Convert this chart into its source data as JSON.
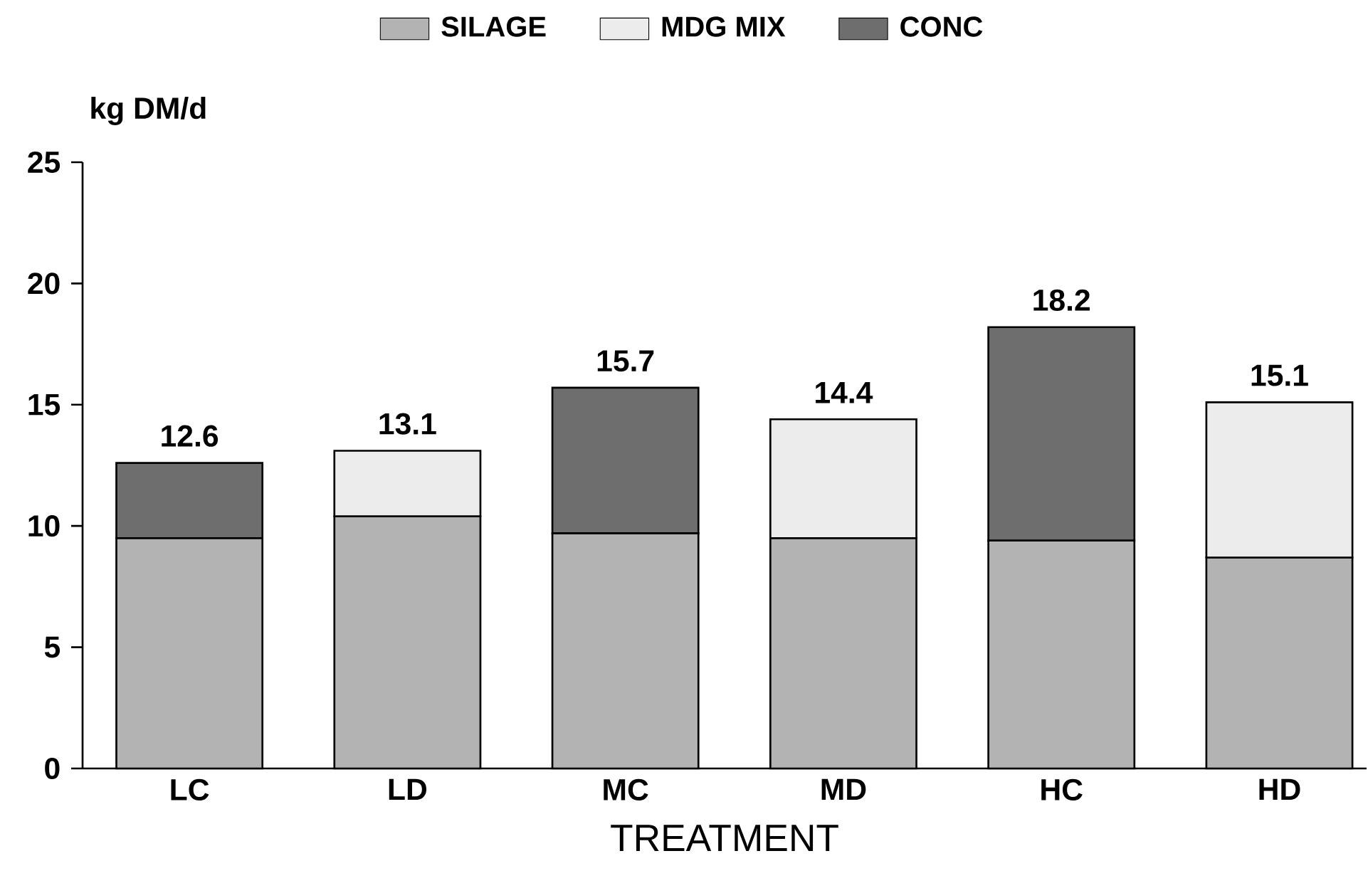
{
  "chart_data": {
    "type": "bar",
    "stacked": true,
    "xlabel": "TREATMENT",
    "ylabel": "kg DM/d",
    "categories": [
      "LC",
      "LD",
      "MC",
      "MD",
      "HC",
      "HD"
    ],
    "series": [
      {
        "name": "SILAGE",
        "color": "#b3b3b3",
        "values": [
          9.5,
          10.4,
          9.7,
          9.5,
          9.4,
          8.7
        ]
      },
      {
        "name": "MDG MIX",
        "color": "#ececec",
        "values": [
          null,
          2.7,
          null,
          4.9,
          null,
          6.4
        ]
      },
      {
        "name": "CONC",
        "color": "#6e6e6e",
        "values": [
          3.1,
          null,
          6.0,
          null,
          8.8,
          null
        ]
      }
    ],
    "totals": [
      "12.6",
      "13.1",
      "15.7",
      "14.4",
      "18.2",
      "15.1"
    ],
    "ylim": [
      0,
      25
    ],
    "yticks": [
      0,
      5,
      10,
      15,
      20,
      25
    ],
    "grid": false,
    "legend": "top"
  }
}
